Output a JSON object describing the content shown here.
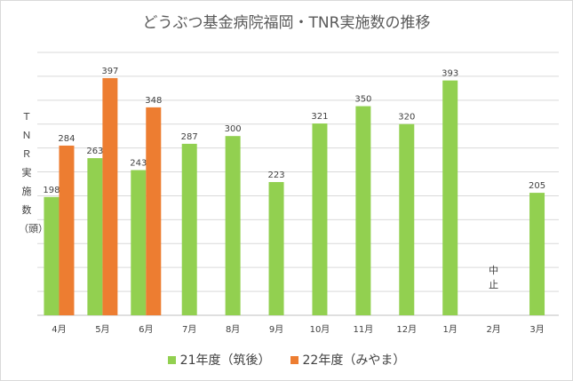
{
  "chart_data": {
    "type": "bar",
    "title": "どうぶつ基金病院福岡・TNR実施数の推移",
    "ylabel": "ＴＮＲ実施数（頭）",
    "xlabel": "",
    "categories": [
      "4月",
      "5月",
      "6月",
      "7月",
      "8月",
      "9月",
      "10月",
      "11月",
      "12月",
      "1月",
      "2月",
      "3月"
    ],
    "ylim": [
      0,
      440
    ],
    "grid": true,
    "legend_position": "bottom",
    "series": [
      {
        "name": "21年度（筑後）",
        "color": "#92d050",
        "values": [
          198,
          263,
          243,
          287,
          300,
          223,
          321,
          350,
          320,
          393,
          null,
          205
        ]
      },
      {
        "name": "22年度（みやま）",
        "color": "#ed7d31",
        "values": [
          284,
          397,
          348,
          null,
          null,
          null,
          null,
          null,
          null,
          null,
          null,
          null
        ]
      }
    ],
    "annotations": [
      {
        "category": "2月",
        "text": "中止"
      }
    ]
  }
}
